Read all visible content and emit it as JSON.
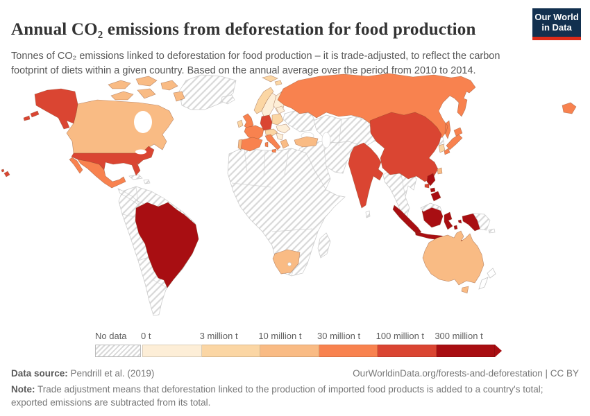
{
  "header": {
    "title": "Annual CO₂ emissions from deforestation for food production",
    "subtitle": "Tonnes of CO₂ emissions linked to deforestation for food production – it is trade-adjusted, to reflect the carbon footprint of diets within a given country. Based on the annual average over the period from 2010 to 2014.",
    "logo": {
      "line1": "Our World",
      "line2": "in Data",
      "bg_color": "#12304f",
      "stripe_color": "#dc2b19"
    }
  },
  "footer": {
    "datasource_label": "Data source:",
    "datasource_value": " Pendrill et al. (2019)",
    "link": "OurWorldinData.org/forests-and-deforestation | CC BY",
    "note_label": "Note:",
    "note_value": " Trade adjustment means that deforestation linked to the production of imported food products is added to a country's total; exported emissions are subtracted from its total."
  },
  "chart_data": {
    "type": "choropleth_map",
    "title": "Annual CO₂ emissions from deforestation for food production",
    "unit": "tonnes CO₂ per year",
    "period": "annual average 2010 to 2014",
    "no_data_label": "No data",
    "legend_bins": [
      {
        "label": "0 t",
        "color": "#fdeed7"
      },
      {
        "label": "3 million t",
        "color": "#fbd6a4"
      },
      {
        "label": "10 million t",
        "color": "#f9bb84"
      },
      {
        "label": "30 million t",
        "color": "#f8824f"
      },
      {
        "label": "100 million t",
        "color": "#da4532"
      },
      {
        "label": "300 million t",
        "color": "#a80e12"
      }
    ],
    "country_bins": {
      "Brazil": 6,
      "Indonesia": 6,
      "Philippines": 6,
      "United States": 5,
      "China": 5,
      "India": 5,
      "Germany": 5,
      "Russia": 4,
      "Mexico": 4,
      "Japan": 4,
      "United Kingdom": 4,
      "France": 4,
      "Italy": 4,
      "Spain": 4,
      "Canada": 3,
      "Australia": 3,
      "Turkey": 3,
      "South Africa": 3,
      "Greece": 3,
      "Taiwan": 3,
      "Portugal": 3,
      "Norway": 2,
      "Ireland": 2,
      "Poland": 2,
      "South Korea": 2,
      "Denmark": 2,
      "Central Europe": 2,
      "Sweden": 1,
      "Finland": 1,
      "Baltics": 1,
      "Romania & Hungary": 1,
      "Balkans": 1
    },
    "no_data_regions": [
      "Greenland",
      "Iceland",
      "most of Africa",
      "Middle East",
      "Central Asia",
      "Mongolia",
      "South America except Brazil",
      "Southeast Asia mainland",
      "Ukraine & Belarus",
      "Papua New Guinea",
      "New Zealand",
      "Central America & Caribbean"
    ]
  }
}
